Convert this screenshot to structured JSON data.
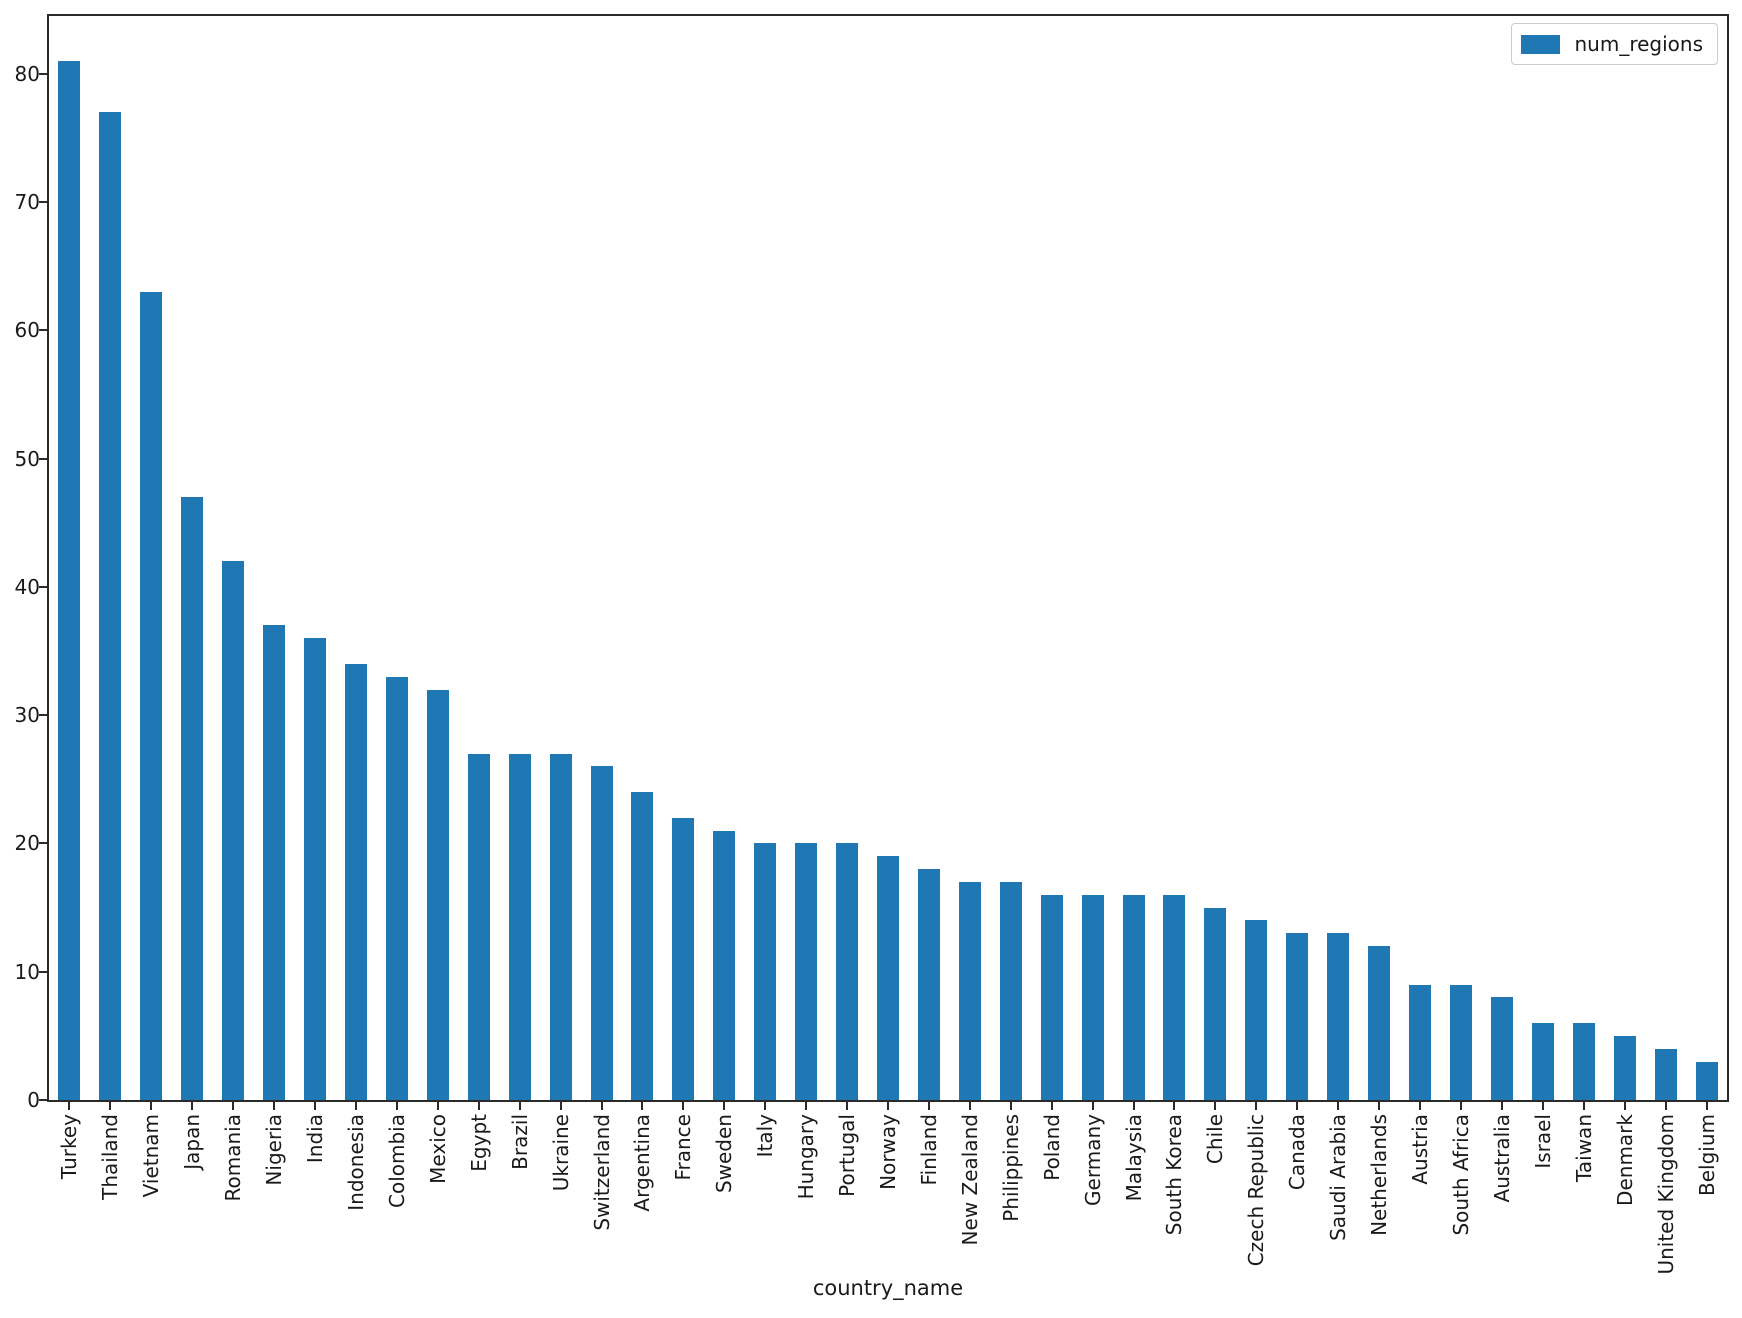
{
  "chart_data": {
    "type": "bar",
    "title": "",
    "xlabel": "country_name",
    "ylabel": "",
    "legend": [
      "num_regions"
    ],
    "legend_position": "upper right",
    "grid": false,
    "bar_color": "#1f77b4",
    "axis_color": "#2b2b2b",
    "ylim": [
      0,
      84.5
    ],
    "yticks": [
      0,
      10,
      20,
      30,
      40,
      50,
      60,
      70,
      80
    ],
    "categories": [
      "Turkey",
      "Thailand",
      "Vietnam",
      "Japan",
      "Romania",
      "Nigeria",
      "India",
      "Indonesia",
      "Colombia",
      "Mexico",
      "Egypt",
      "Brazil",
      "Ukraine",
      "Switzerland",
      "Argentina",
      "France",
      "Sweden",
      "Italy",
      "Hungary",
      "Portugal",
      "Norway",
      "Finland",
      "New Zealand",
      "Philippines",
      "Poland",
      "Germany",
      "Malaysia",
      "South Korea",
      "Chile",
      "Czech Republic",
      "Canada",
      "Saudi Arabia",
      "Netherlands",
      "Austria",
      "South Africa",
      "Australia",
      "Israel",
      "Taiwan",
      "Denmark",
      "United Kingdom",
      "Belgium"
    ],
    "values": [
      81,
      77,
      63,
      47,
      42,
      37,
      36,
      34,
      33,
      32,
      27,
      27,
      27,
      26,
      24,
      22,
      21,
      20,
      20,
      20,
      19,
      18,
      17,
      17,
      16,
      16,
      16,
      16,
      15,
      14,
      13,
      13,
      12,
      9,
      9,
      8,
      6,
      6,
      5,
      4,
      3
    ]
  }
}
